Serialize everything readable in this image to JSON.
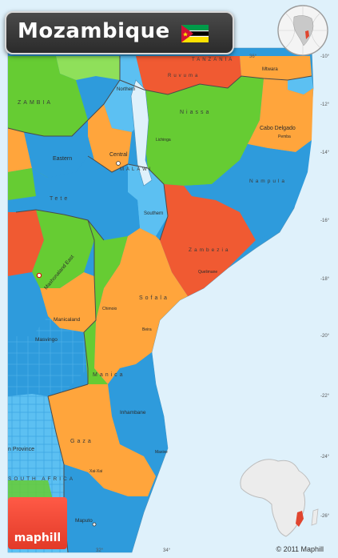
{
  "title": "Mozambique",
  "brand": "maphill",
  "copyright": "© 2011 Maphill",
  "colors": {
    "ocean": "#dff1fb",
    "blue": "#2e9bdc",
    "light_blue": "#5cc0f2",
    "green": "#66cc33",
    "light_green": "#8fe05a",
    "orange": "#ffa53c",
    "red": "#f05a32",
    "border": "#555555",
    "title_bar": "#333333",
    "brand_red": "#ef4633"
  },
  "labels": {
    "tanzania": "TANZANIA",
    "zambia": "ZAMBIA",
    "malawi": "MALAWI",
    "eastern": "Eastern",
    "tete": "Tete",
    "northern": "Northern",
    "central": "Central",
    "southern": "Southern",
    "niassa": "Niassa",
    "cabo_delgado": "Cabo Delgado",
    "nampula": "Nampula",
    "zambezia": "Zambezia",
    "sofala": "Sofala",
    "manica": "Manica",
    "inhambane": "Inhambane",
    "gaza": "Gaza",
    "maputo": "Maputo",
    "mashonaland_east": "Mashonaland East",
    "manicaland": "Manicaland",
    "masvingo": "Masvingo",
    "south_africa": "SOUTH AFRICA",
    "mtwara": "Mtwara",
    "ruvuma": "Ruvuma",
    "lindi": "Lindi",
    "lichinga": "Lichinga",
    "pemba": "Pemba",
    "quelimane": "Quelimane",
    "beira": "Beira",
    "chimoio": "Chimoio",
    "xai_xai": "Xai-Xai",
    "maxixe": "Maxixe",
    "n_province": "n Province"
  },
  "coordinates": [
    "-10°",
    "-12°",
    "-14°",
    "-16°",
    "-18°",
    "-20°",
    "-22°",
    "-24°",
    "-26°",
    "30°",
    "32°",
    "34°",
    "36°",
    "38°",
    "40°"
  ],
  "icons": [
    "mozambique-flag-icon",
    "globe-locator-icon",
    "africa-locator-icon"
  ]
}
